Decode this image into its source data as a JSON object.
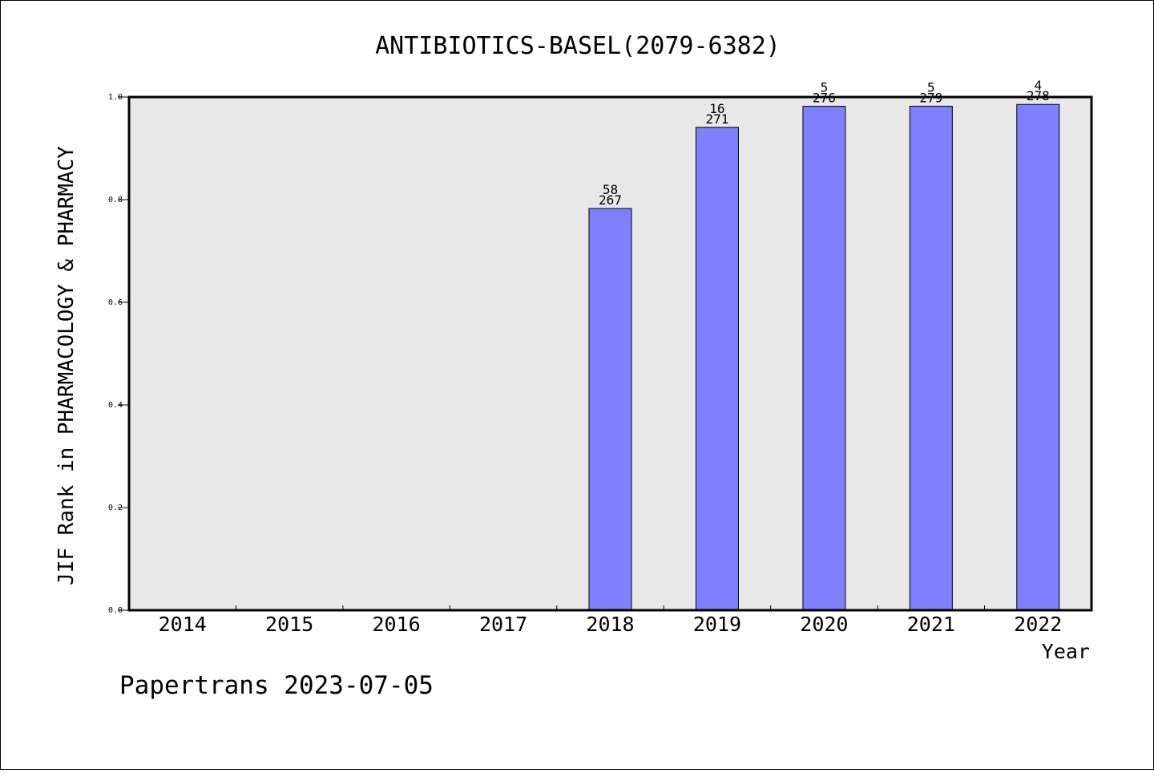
{
  "chart_data": {
    "type": "bar",
    "title": "ANTIBIOTICS-BASEL(2079-6382)",
    "ylabel": "JIF Rank in PHARMACOLOGY & PHARMACY",
    "xlabel": "Year",
    "categories": [
      "2014",
      "2015",
      "2016",
      "2017",
      "2018",
      "2019",
      "2020",
      "2021",
      "2022"
    ],
    "values": [
      null,
      null,
      null,
      null,
      0.7828,
      0.941,
      0.9819,
      0.9821,
      0.9856
    ],
    "rank_labels": [
      "",
      "",
      "",
      "",
      "58",
      "16",
      "5",
      "5",
      "4"
    ],
    "total_labels": [
      "",
      "",
      "",
      "",
      "267",
      "271",
      "276",
      "279",
      "278"
    ],
    "yticks": [
      "0.0",
      "0.2",
      "0.4",
      "0.6",
      "0.8",
      "1.0"
    ],
    "ylim": [
      0,
      1
    ],
    "grid": false,
    "legend": "none",
    "colors": {
      "bar": "#8080ff",
      "plot_background": "#e8e8e8",
      "axis": "#000000"
    }
  },
  "footer": "Papertrans 2023-07-05"
}
